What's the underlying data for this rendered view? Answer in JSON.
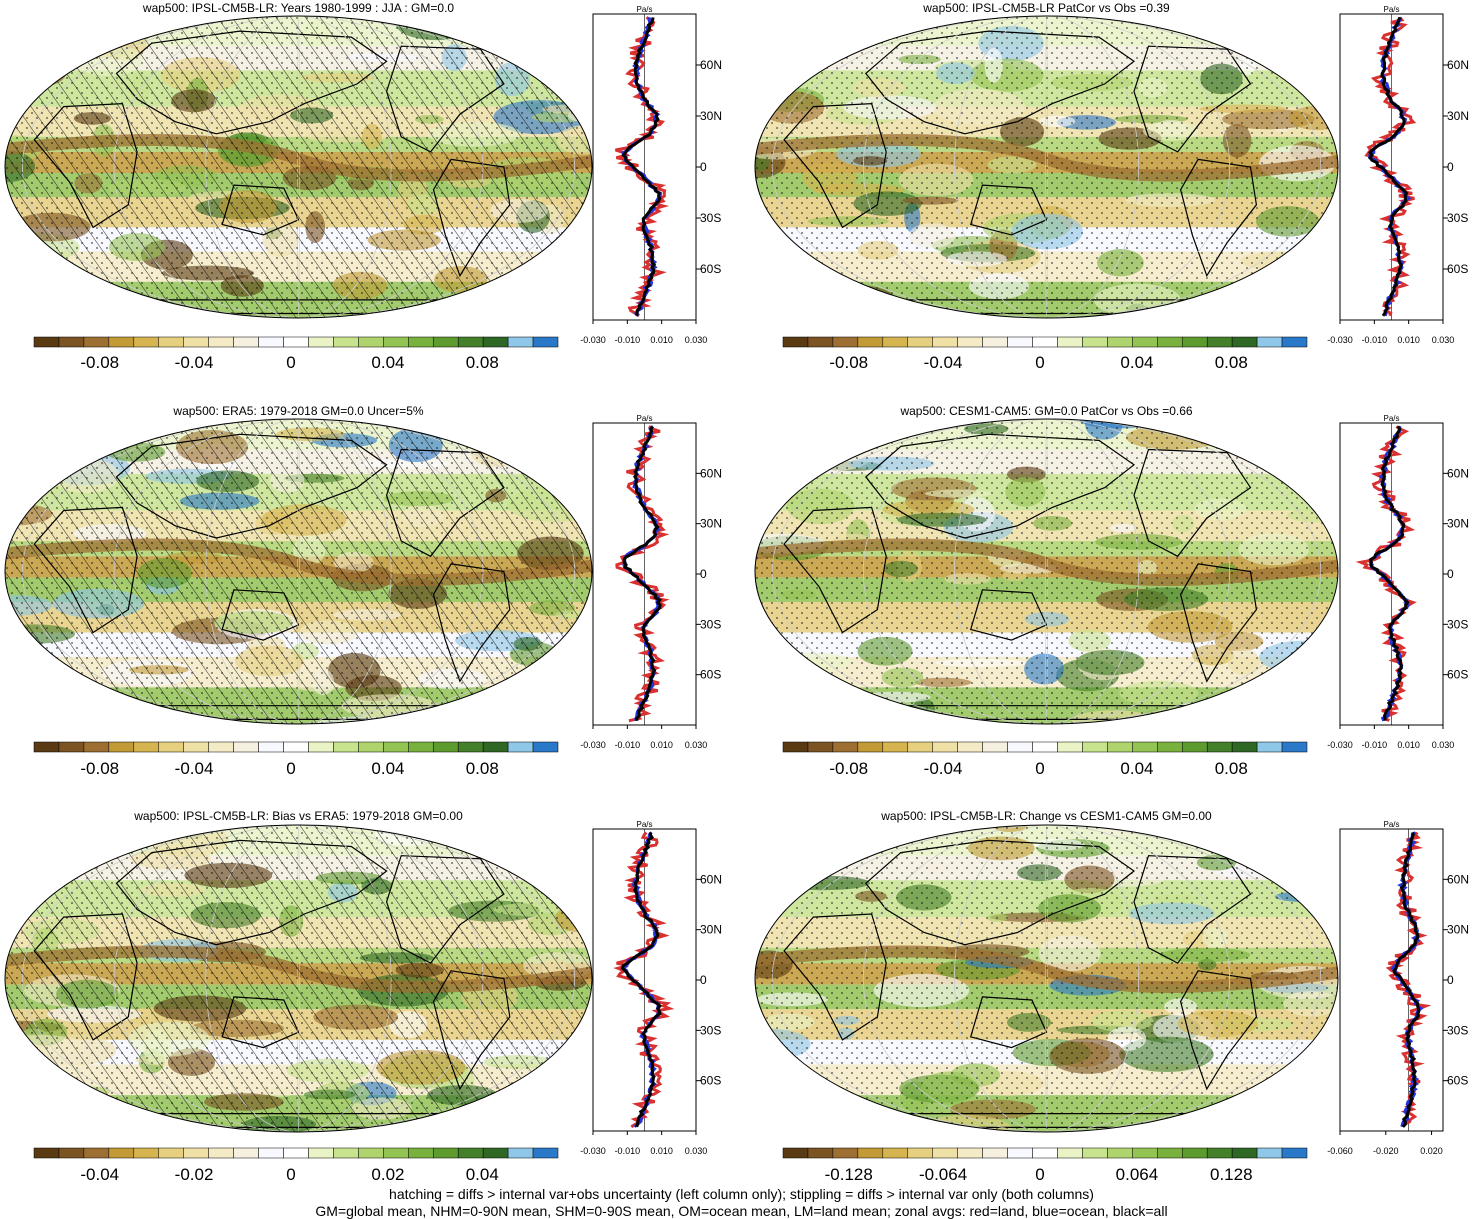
{
  "footer": {
    "line1": "hatching = diffs > internal var+obs uncertainty (left column only); stippling = diffs > internal var only (both columns)",
    "line2": "GM=global mean, NHM=0-90N mean, SHM=0-90S mean, OM=ocean mean, LM=land mean; zonal avgs: red=land, blue=ocean, black=all"
  },
  "colors": {
    "scale": [
      "#5a3a12",
      "#7c5322",
      "#9e6f32",
      "#c29a36",
      "#d6b44f",
      "#e6cf7e",
      "#efe0a6",
      "#f4ebc6",
      "#f5f0e0",
      "#f8f8ff",
      "#ffffff",
      "#e9f3c6",
      "#c8e38e",
      "#afd46d",
      "#92c353",
      "#78b13d",
      "#5e9b2f",
      "#447f2a",
      "#2e6824",
      "#8ec7e8",
      "#2a78c8"
    ],
    "land": "#d93030",
    "ocean": "#2233dd",
    "all": "#000000"
  },
  "panels": [
    {
      "id": "p1",
      "title": "wap500: IPSL-CM5B-LR: Years 1980-1999 : JJA : GM=0.0",
      "hatched": true,
      "chart_data": {
        "type": "heatmap",
        "colorbar": {
          "ticks": [
            "-0.08",
            "-0.04",
            "0",
            "0.04",
            "0.08"
          ],
          "range": [
            -0.1,
            0.1
          ]
        },
        "zonal": {
          "unit": "Pa/s",
          "xticks": [
            "-0.030",
            "-0.010",
            "0.010",
            "0.030"
          ],
          "xlim": [
            -0.03,
            0.03
          ],
          "yticks": [
            "60N",
            "30N",
            "0",
            "30S",
            "60S"
          ],
          "ylim": [
            -90,
            90
          ],
          "series_names": [
            "land",
            "ocean",
            "all"
          ]
        }
      }
    },
    {
      "id": "p2",
      "title": "wap500: IPSL-CM5B-LR PatCor vs Obs =0.39",
      "hatched": false,
      "chart_data": {
        "type": "heatmap",
        "colorbar": {
          "ticks": [
            "-0.08",
            "-0.04",
            "0",
            "0.04",
            "0.08"
          ],
          "range": [
            -0.1,
            0.1
          ]
        },
        "zonal": {
          "unit": "Pa/s",
          "xticks": [
            "-0.030",
            "-0.010",
            "0.010",
            "0.030"
          ],
          "xlim": [
            -0.03,
            0.03
          ],
          "yticks": [
            "60N",
            "30N",
            "0",
            "30S",
            "60S"
          ],
          "ylim": [
            -90,
            90
          ],
          "series_names": [
            "land",
            "ocean",
            "all"
          ]
        }
      }
    },
    {
      "id": "p3",
      "title": "wap500: ERA5: 1979-2018 GM=0.0 Uncer=5%",
      "hatched": true,
      "chart_data": {
        "type": "heatmap",
        "colorbar": {
          "ticks": [
            "-0.08",
            "-0.04",
            "0",
            "0.04",
            "0.08"
          ],
          "range": [
            -0.1,
            0.1
          ]
        },
        "zonal": {
          "unit": "Pa/s",
          "xticks": [
            "-0.030",
            "-0.010",
            "0.010",
            "0.030"
          ],
          "xlim": [
            -0.03,
            0.03
          ],
          "yticks": [
            "60N",
            "30N",
            "0",
            "30S",
            "60S"
          ],
          "ylim": [
            -90,
            90
          ],
          "series_names": [
            "land",
            "ocean",
            "all"
          ]
        }
      }
    },
    {
      "id": "p4",
      "title": "wap500: CESM1-CAM5: GM=0.0 PatCor vs Obs =0.66",
      "hatched": false,
      "chart_data": {
        "type": "heatmap",
        "colorbar": {
          "ticks": [
            "-0.08",
            "-0.04",
            "0",
            "0.04",
            "0.08"
          ],
          "range": [
            -0.1,
            0.1
          ]
        },
        "zonal": {
          "unit": "Pa/s",
          "xticks": [
            "-0.030",
            "-0.010",
            "0.010",
            "0.030"
          ],
          "xlim": [
            -0.03,
            0.03
          ],
          "yticks": [
            "60N",
            "30N",
            "0",
            "30S",
            "60S"
          ],
          "ylim": [
            -90,
            90
          ],
          "series_names": [
            "land",
            "ocean",
            "all"
          ]
        }
      }
    },
    {
      "id": "p5",
      "title": "wap500: IPSL-CM5B-LR: Bias vs ERA5: 1979-2018 GM=0.00",
      "hatched": true,
      "chart_data": {
        "type": "heatmap",
        "colorbar": {
          "ticks": [
            "-0.04",
            "-0.02",
            "0",
            "0.02",
            "0.04"
          ],
          "range": [
            -0.05,
            0.05
          ]
        },
        "zonal": {
          "unit": "Pa/s",
          "xticks": [
            "-0.030",
            "-0.010",
            "0.010",
            "0.030"
          ],
          "xlim": [
            -0.03,
            0.03
          ],
          "yticks": [
            "60N",
            "30N",
            "0",
            "30S",
            "60S"
          ],
          "ylim": [
            -90,
            90
          ],
          "series_names": [
            "land",
            "ocean",
            "all"
          ]
        }
      }
    },
    {
      "id": "p6",
      "title": "wap500: IPSL-CM5B-LR: Change vs CESM1-CAM5 GM=0.00",
      "hatched": false,
      "chart_data": {
        "type": "heatmap",
        "colorbar": {
          "ticks": [
            "-0.128",
            "-0.064",
            "0",
            "0.064",
            "0.128"
          ],
          "range": [
            -0.16,
            0.16
          ]
        },
        "zonal": {
          "unit": "Pa/s",
          "xticks": [
            "-0.060",
            "-0.020",
            "0.020"
          ],
          "xlim": [
            -0.06,
            0.03
          ],
          "yticks": [
            "60N",
            "30N",
            "0",
            "30S",
            "60S"
          ],
          "ylim": [
            -90,
            90
          ],
          "series_names": [
            "land",
            "ocean",
            "all"
          ]
        }
      }
    }
  ]
}
